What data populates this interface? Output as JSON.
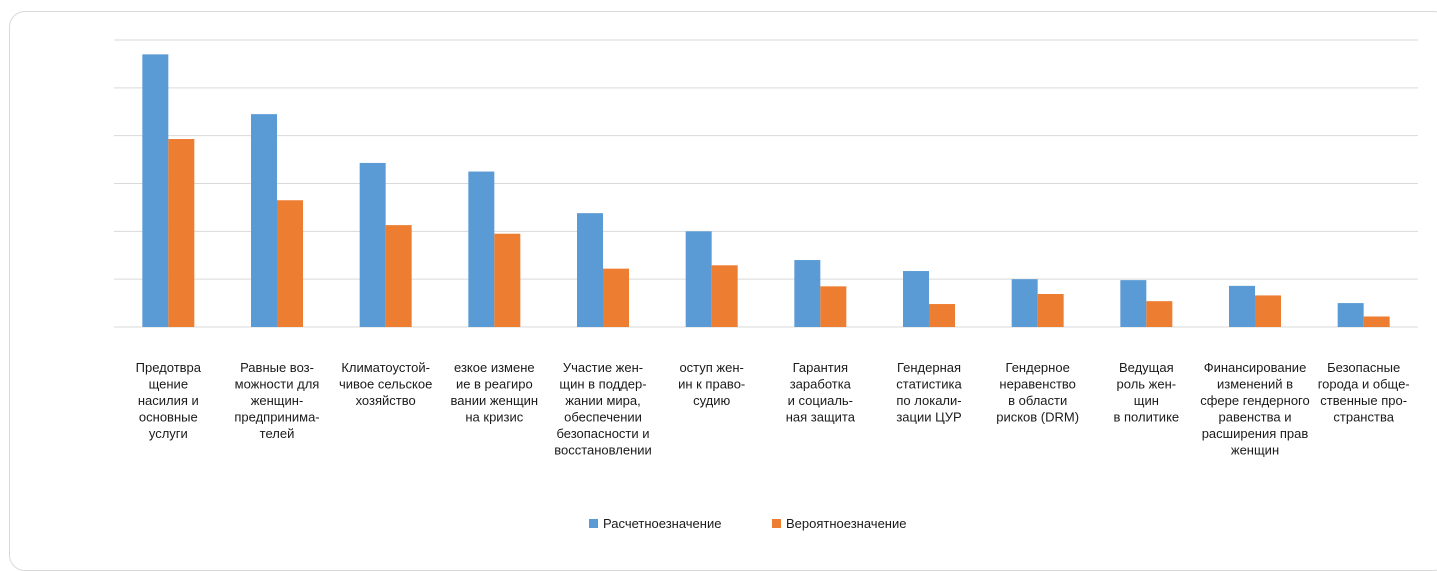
{
  "chart_data": {
    "type": "bar",
    "categories": [
      [
        "Предотвра",
        "щение",
        "насилия и",
        "основные",
        "услуги"
      ],
      [
        "Равные воз-",
        "можности для",
        "женщин-",
        "предпринима-",
        "телей"
      ],
      [
        "Климатоустой-",
        "чивое сельское",
        "хозяйство"
      ],
      [
        "езкое измене",
        "ие в реагиро",
        "вании женщин",
        "на кризис"
      ],
      [
        "Участие жен-",
        "щин в поддер-",
        "жании мира,",
        "обеспечении",
        "безопасности и",
        "восстановлении"
      ],
      [
        "оступ жен-",
        "ин к право-",
        "судию"
      ],
      [
        "Гарантия",
        "заработка",
        "и социаль-",
        "ная защита"
      ],
      [
        "Гендерная",
        "статистика",
        "по локали-",
        "зации ЦУР"
      ],
      [
        "Гендерное",
        "неравенство",
        "в области",
        "рисков (DRM)"
      ],
      [
        "Ведущая",
        "роль жен-",
        "щин",
        "в политике"
      ],
      [
        "Финансирование",
        "изменений в",
        "сфере гендерного",
        "равенства и",
        "расширения прав",
        "женщин"
      ],
      [
        "Безопасные",
        "города и обще-",
        "ственные про-",
        "странства"
      ]
    ],
    "series": [
      {
        "name": "Расчетное значение",
        "color": "#5b9bd5",
        "values": [
          5.7,
          4.45,
          3.43,
          3.25,
          2.38,
          2.0,
          1.4,
          1.17,
          1.0,
          0.98,
          0.86,
          0.5
        ]
      },
      {
        "name": "Вероятное значение",
        "color": "#ed7d31",
        "values": [
          3.93,
          2.65,
          2.13,
          1.95,
          1.22,
          1.29,
          0.85,
          0.48,
          0.69,
          0.54,
          0.66,
          0.22
        ]
      }
    ],
    "ylim": [
      0,
      6
    ],
    "y_gridlines": [
      0,
      1,
      2,
      3,
      4,
      5,
      6
    ],
    "grid": true,
    "legend": "bottom-center",
    "legend_labels": [
      "Расчетноезначение",
      "Вероятноезначение"
    ]
  }
}
